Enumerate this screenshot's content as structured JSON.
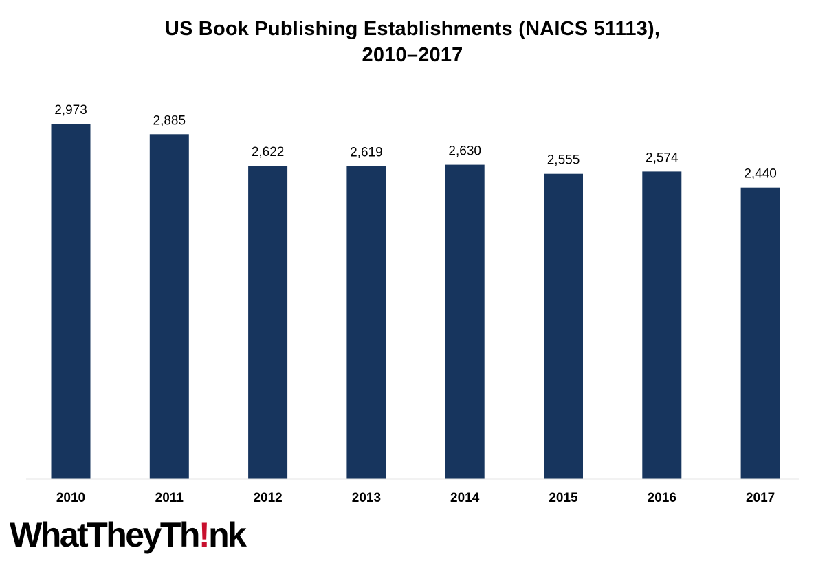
{
  "page": {
    "title_line1": "US Book Publishing Establishments (NAICS 51113),",
    "title_line2": "2010–2017"
  },
  "logo": {
    "text_before": "WhatTheyTh",
    "text_excl": "!",
    "text_after": "nk",
    "accent_color": "#c8102e"
  },
  "chart_data": {
    "type": "bar",
    "title": "US Book Publishing Establishments (NAICS 51113), 2010–2017",
    "xlabel": "",
    "ylabel": "",
    "categories": [
      "2010",
      "2011",
      "2012",
      "2013",
      "2014",
      "2015",
      "2016",
      "2017"
    ],
    "values": [
      2973,
      2885,
      2622,
      2619,
      2630,
      2555,
      2574,
      2440
    ],
    "value_labels": [
      "2,973",
      "2,885",
      "2,622",
      "2,619",
      "2,630",
      "2,555",
      "2,574",
      "2,440"
    ],
    "ylim": [
      0,
      2973
    ],
    "grid": false,
    "legend": "none",
    "bar_color": "#17355e"
  }
}
